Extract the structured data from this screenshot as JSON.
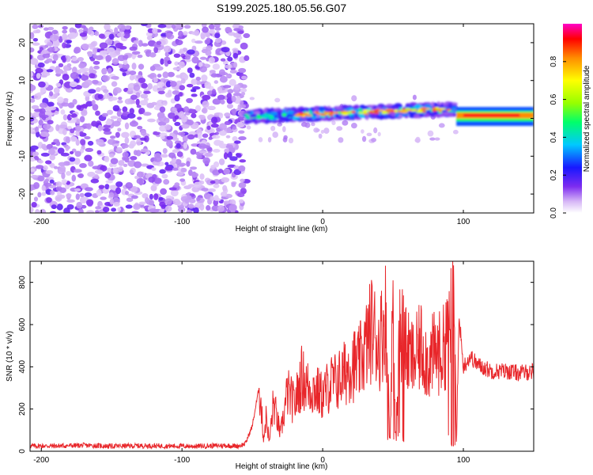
{
  "figure": {
    "title": "S199.2025.180.05.56.G07"
  },
  "chart_data": [
    {
      "type": "heatmap",
      "xlabel": "Height of straight line (km)",
      "ylabel": "Frequency (Hz)",
      "xlim": [
        -208,
        150
      ],
      "ylim": [
        -25,
        25
      ],
      "x_ticks": [
        -200,
        -100,
        0,
        100
      ],
      "y_ticks": [
        -20,
        -10,
        0,
        10,
        20
      ],
      "colorbar": {
        "label": "Normalized spectral amplitude",
        "range": [
          0,
          1
        ],
        "ticks": [
          0.0,
          0.2,
          0.4,
          0.6,
          0.8
        ],
        "tick_labels": [
          "0.0",
          "0.2",
          "0.4",
          "0.6",
          "0.8"
        ],
        "colormap": [
          "#ffffff",
          "#d7b8f6",
          "#7d2cf0",
          "#1818ff",
          "#00c8ff",
          "#00ff6a",
          "#96ff00",
          "#ffff00",
          "#ff8c00",
          "#ff0000",
          "#ff00c8"
        ]
      },
      "regions": [
        {
          "x": [
            -208,
            -54
          ],
          "description_values": {
            "frequency_range": [
              -25,
              25
            ],
            "amplitude_range": [
              0.0,
              0.3
            ]
          }
        },
        {
          "x": [
            -54,
            95
          ],
          "frequency_center": [
            0.5,
            2.5
          ],
          "amplitude_range": [
            0.1,
            1.0
          ]
        },
        {
          "x": [
            95,
            150
          ],
          "frequency_center": [
            1.0,
            0.5
          ],
          "amplitude_range": [
            0.7,
            1.0
          ]
        }
      ]
    },
    {
      "type": "line",
      "xlabel": "Height of straight line (km)",
      "ylabel": "SNR (10 * v/v)",
      "xlim": [
        -208,
        150
      ],
      "ylim": [
        0,
        900
      ],
      "x_ticks": [
        -200,
        -100,
        0,
        100
      ],
      "y_ticks": [
        0,
        200,
        400,
        600,
        800
      ],
      "series": [
        {
          "color": "#e8262a",
          "x": [
            -208,
            -190,
            -170,
            -150,
            -130,
            -110,
            -90,
            -70,
            -60,
            -55,
            -50,
            -45,
            -42,
            -40,
            -38,
            -35,
            -30,
            -25,
            -20,
            -15,
            -10,
            -5,
            0,
            5,
            10,
            15,
            20,
            25,
            30,
            35,
            40,
            45,
            48,
            50,
            52,
            55,
            60,
            65,
            70,
            75,
            80,
            85,
            90,
            93,
            95,
            97,
            100,
            105,
            110,
            120,
            130,
            140,
            150
          ],
          "values": [
            25,
            25,
            28,
            24,
            26,
            25,
            24,
            27,
            25,
            35,
            120,
            310,
            60,
            170,
            40,
            230,
            80,
            280,
            220,
            350,
            300,
            290,
            260,
            320,
            330,
            360,
            420,
            400,
            480,
            590,
            500,
            650,
            60,
            720,
            80,
            610,
            460,
            430,
            500,
            420,
            470,
            460,
            600,
            880,
            30,
            640,
            400,
            450,
            410,
            380,
            380,
            370,
            380
          ],
          "extremes": {
            "max": 880,
            "max_x": 93
          }
        }
      ]
    }
  ]
}
